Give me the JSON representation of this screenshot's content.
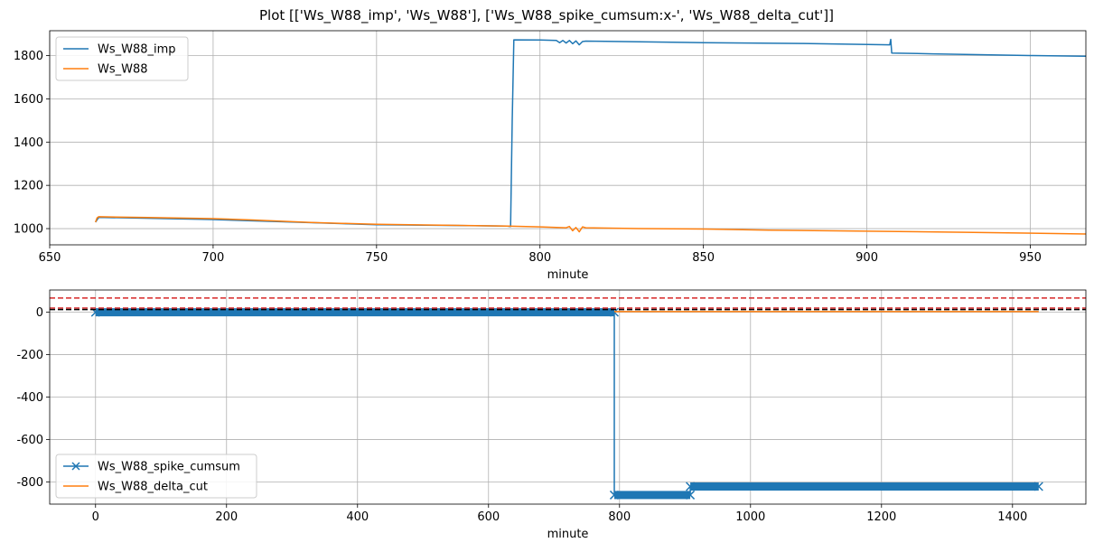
{
  "figure": {
    "title": "Plot [['Ws_W88_imp', 'Ws_W88'], ['Ws_W88_spike_cumsum:x-', 'Ws_W88_delta_cut']]"
  },
  "chart_data": [
    {
      "type": "line",
      "xlabel": "minute",
      "ylabel": "",
      "xlim": [
        650,
        967
      ],
      "ylim": [
        925,
        1915
      ],
      "xticks": [
        650,
        700,
        750,
        800,
        850,
        900,
        950
      ],
      "yticks": [
        1000,
        1200,
        1400,
        1600,
        1800
      ],
      "grid": true,
      "legend": "upper left",
      "series": [
        {
          "name": "Ws_W88_imp",
          "color": "#1f77b4",
          "x": [
            664,
            665,
            700,
            750,
            790,
            791,
            791.5,
            792,
            800,
            805,
            806,
            807,
            808,
            809,
            810,
            811,
            812,
            813,
            814,
            820,
            850,
            880,
            907,
            907.3,
            907.6,
            920,
            950,
            967
          ],
          "y": [
            1030,
            1052,
            1042,
            1018,
            1012,
            1010,
            1500,
            1873,
            1872,
            1870,
            1860,
            1870,
            1858,
            1870,
            1855,
            1868,
            1850,
            1865,
            1867,
            1866,
            1860,
            1856,
            1850,
            1875,
            1812,
            1808,
            1800,
            1797
          ]
        },
        {
          "name": "Ws_W88",
          "color": "#ff7f0e",
          "x": [
            664,
            664.5,
            665,
            680,
            700,
            712,
            730,
            750,
            770,
            790,
            800,
            808,
            809,
            810,
            811,
            812,
            813,
            814,
            830,
            850,
            870,
            900,
            930,
            967
          ],
          "y": [
            1030,
            1050,
            1055,
            1051,
            1046,
            1040,
            1028,
            1020,
            1016,
            1012,
            1008,
            1004,
            1010,
            990,
            1005,
            985,
            1008,
            1004,
            1000,
            998,
            993,
            988,
            983,
            975
          ]
        }
      ]
    },
    {
      "type": "line",
      "xlabel": "minute",
      "ylabel": "",
      "xlim": [
        -70,
        1512
      ],
      "ylim": [
        -905,
        105
      ],
      "xticks": [
        0,
        200,
        400,
        600,
        800,
        1000,
        1200,
        1400
      ],
      "yticks": [
        0,
        -200,
        -400,
        -600,
        -800
      ],
      "grid": true,
      "legend": "lower left",
      "hlines": [
        {
          "y": 67,
          "color": "#d62728",
          "style": "dashed"
        },
        {
          "y": 20,
          "color": "#d62728",
          "style": "dashed"
        },
        {
          "y": 13,
          "color": "#000000",
          "style": "dashed"
        }
      ],
      "series": [
        {
          "name": "Ws_W88_spike_cumsum",
          "color": "#1f77b4",
          "marker": "x",
          "segments": [
            {
              "x_start": 0,
              "x_end": 792,
              "y": 0
            },
            {
              "x_start": 792,
              "x_end": 908,
              "y": -862
            },
            {
              "x_start": 908,
              "x_end": 1440,
              "y": -822
            }
          ]
        },
        {
          "name": "Ws_W88_delta_cut",
          "color": "#ff7f0e",
          "x": [
            792,
            1440
          ],
          "y": [
            3,
            3
          ]
        }
      ]
    }
  ]
}
